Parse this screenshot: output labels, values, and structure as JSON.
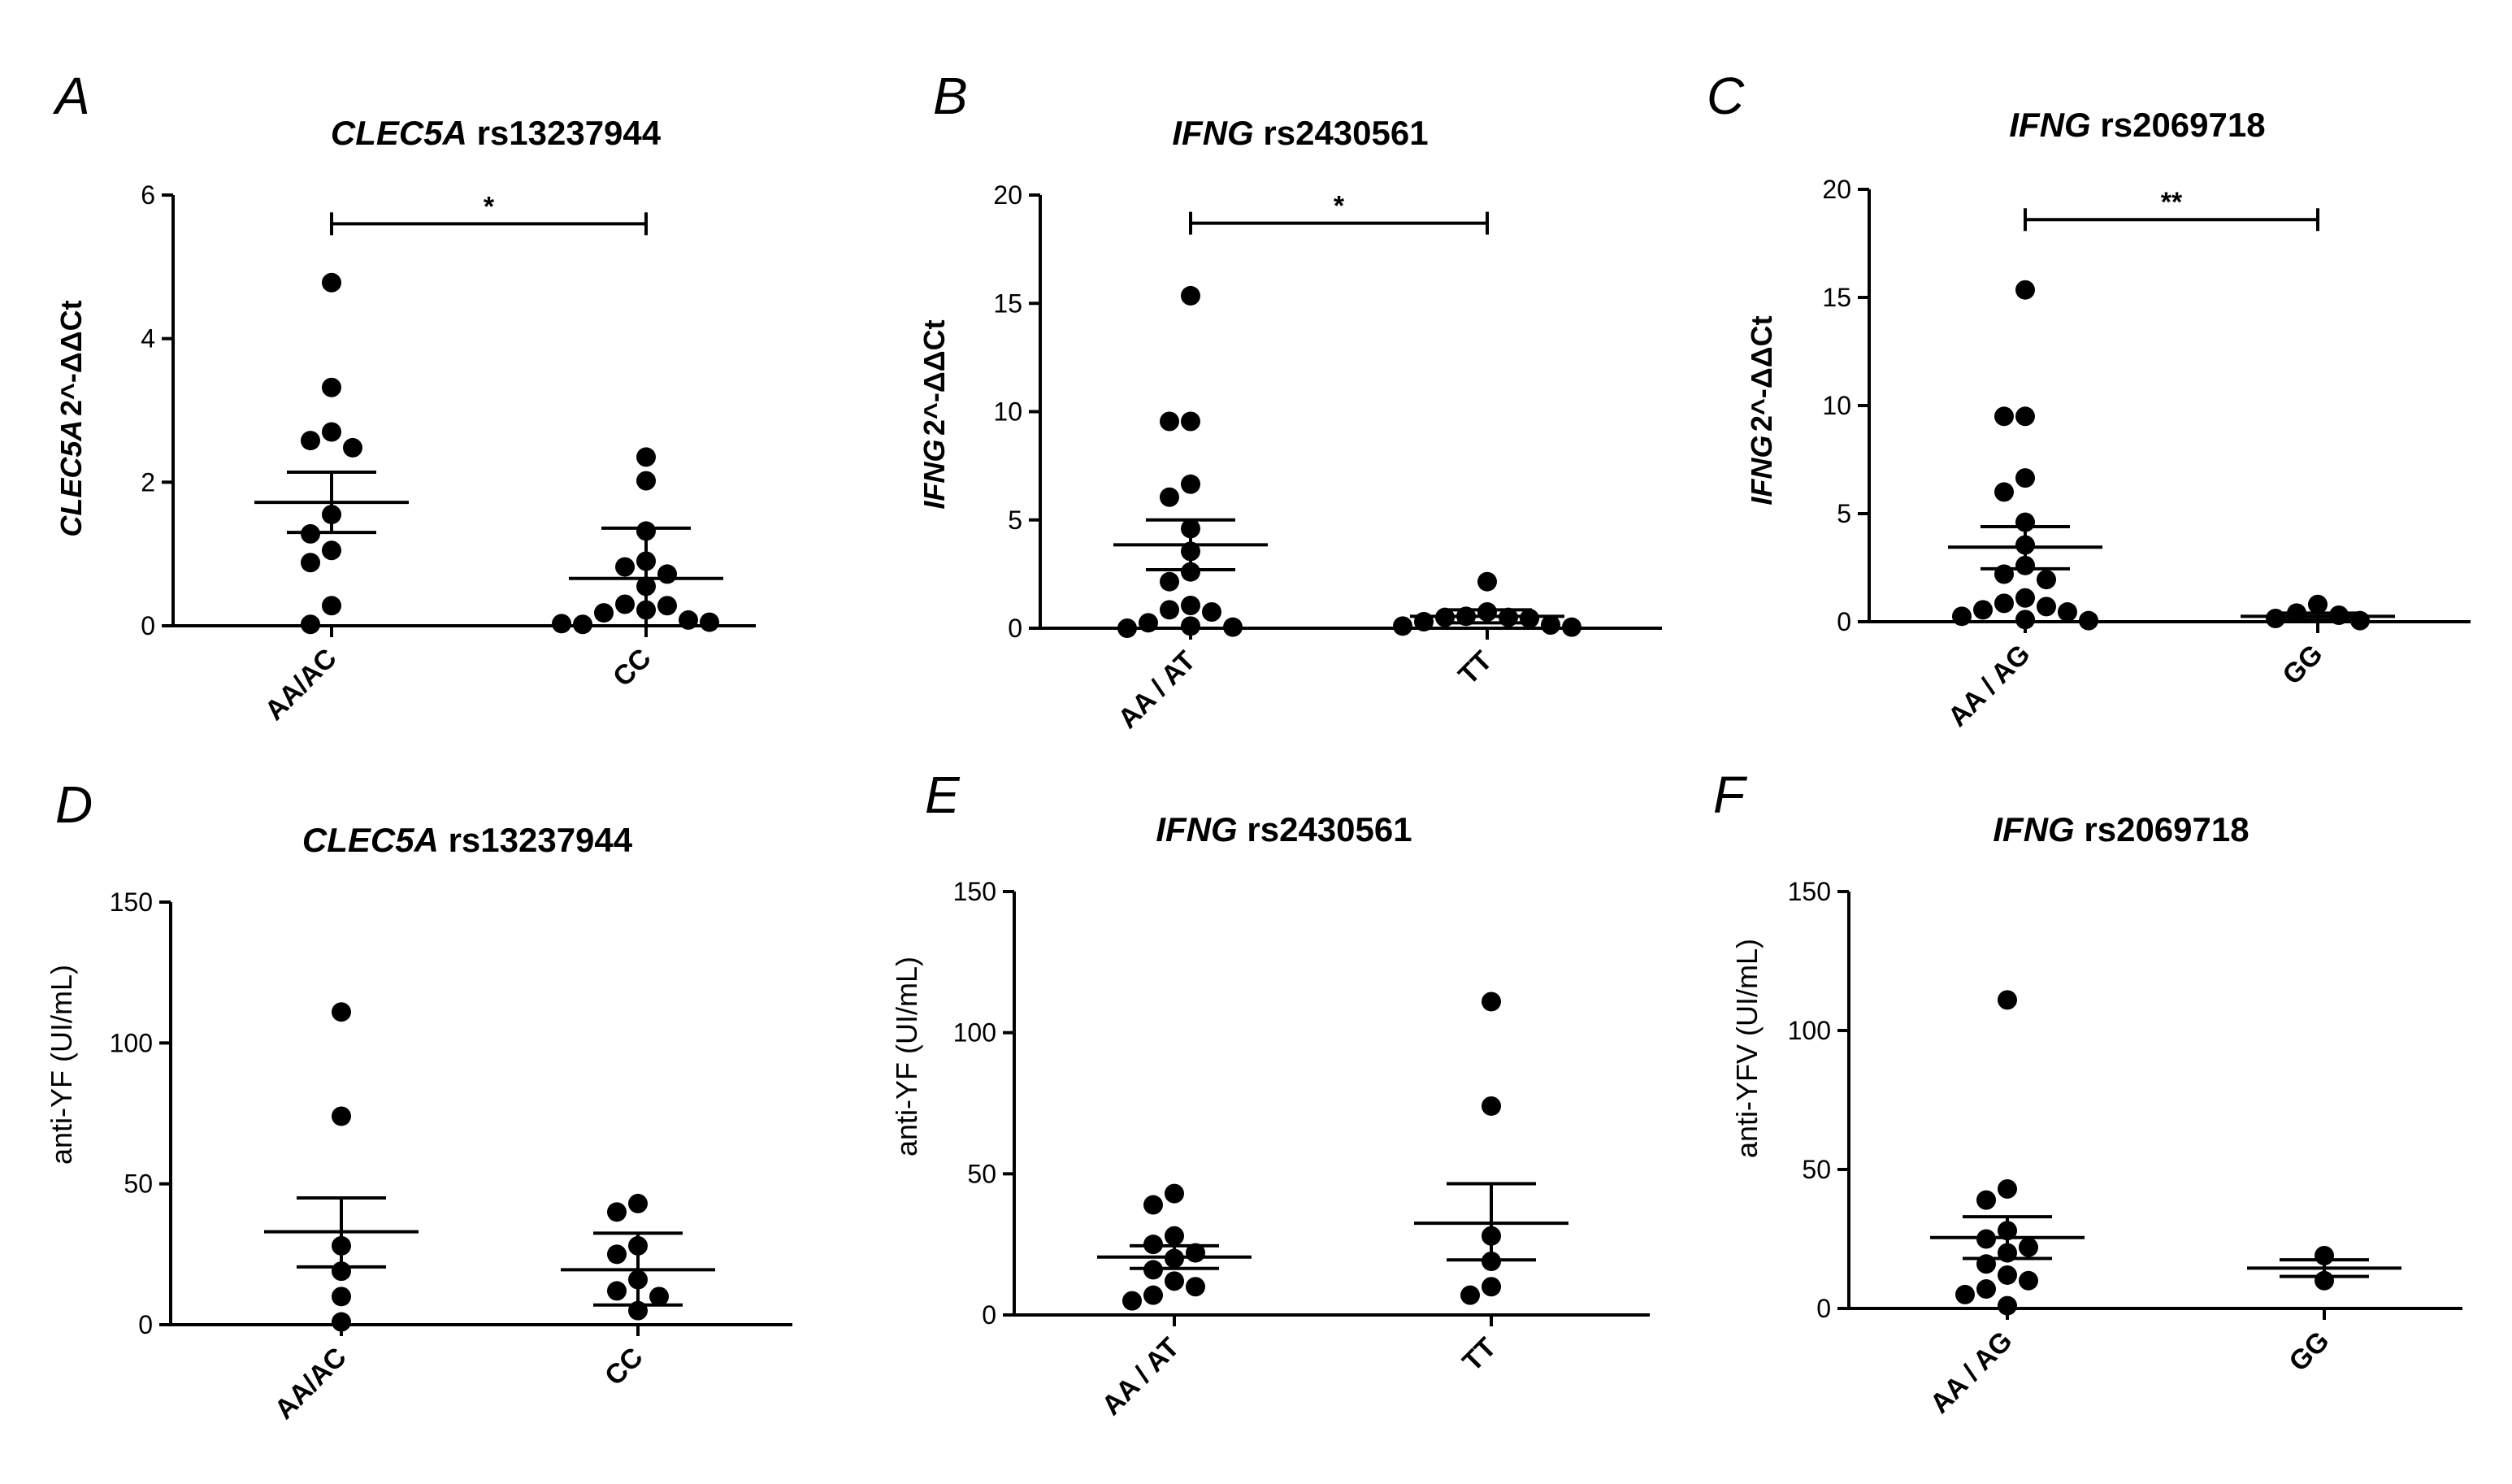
{
  "figure": {
    "panels": [
      {
        "letter": "A",
        "title": {
          "italic": "CLEC5A",
          "plain": "rs13237944"
        },
        "ylabel": {
          "italic": "CLEC5A",
          "plain": "2^-ΔΔCt"
        },
        "ylim": [
          0,
          6
        ],
        "yticks": [
          "0",
          "2",
          "4",
          "6"
        ],
        "categories": [
          "AA/AC",
          "CC"
        ],
        "groups": [
          {
            "name": "AA/AC",
            "mean": 1.72,
            "sem_low": 1.3,
            "sem_high": 2.14,
            "points": [
              4.78,
              3.32,
              2.7,
              2.58,
              2.48,
              1.55,
              1.28,
              1.05,
              0.88,
              0.28,
              0.02
            ]
          },
          {
            "name": "CC",
            "mean": 0.66,
            "sem_low": 0.0,
            "sem_high": 1.36,
            "points": [
              2.35,
              2.02,
              1.32,
              0.9,
              0.82,
              0.72,
              0.55,
              0.22,
              0.3,
              0.28,
              0.18,
              0.08,
              0.02,
              0.05,
              0.03
            ]
          }
        ],
        "significance": {
          "label": "*",
          "y": 5.6
        }
      },
      {
        "letter": "B",
        "title": {
          "italic": "IFNG",
          "plain": "rs2430561"
        },
        "ylabel": {
          "italic": "IFNG",
          "plain": "2^-ΔΔCt"
        },
        "ylim": [
          0,
          20
        ],
        "yticks": [
          "0",
          "5",
          "10",
          "15",
          "20"
        ],
        "categories": [
          "AA / AT",
          "TT"
        ],
        "groups": [
          {
            "name": "AA / AT",
            "mean": 3.85,
            "sem_low": 2.7,
            "sem_high": 5.0,
            "points": [
              15.35,
              9.55,
              9.55,
              6.65,
              6.05,
              4.6,
              3.55,
              2.6,
              2.15,
              1.05,
              0.85,
              0.75,
              0.25,
              0.1,
              0.05,
              0.0
            ]
          },
          {
            "name": "TT",
            "mean": 0.55,
            "sem_low": 0.25,
            "sem_high": 0.85,
            "points": [
              2.15,
              0.75,
              0.55,
              0.5,
              0.5,
              0.45,
              0.3,
              0.15,
              0.1,
              0.05
            ]
          }
        ],
        "significance": {
          "label": "*",
          "y": 18.7
        }
      },
      {
        "letter": "C",
        "title": {
          "italic": "IFNG",
          "plain": "rs2069718"
        },
        "ylabel": {
          "italic": "IFNG",
          "plain": "2^-ΔΔCt"
        },
        "ylim": [
          0,
          20
        ],
        "yticks": [
          "0",
          "5",
          "10",
          "15",
          "20"
        ],
        "categories": [
          "AA / AG",
          "GG"
        ],
        "groups": [
          {
            "name": "AA / AG",
            "mean": 3.45,
            "sem_low": 2.45,
            "sem_high": 4.4,
            "points": [
              15.35,
              9.5,
              9.5,
              6.65,
              6.0,
              4.6,
              3.55,
              2.6,
              2.2,
              1.95,
              1.1,
              0.85,
              0.7,
              0.55,
              0.45,
              0.25,
              0.1,
              0.05
            ]
          },
          {
            "name": "GG",
            "mean": 0.25,
            "sem_low": 0.1,
            "sem_high": 0.4,
            "points": [
              0.8,
              0.4,
              0.3,
              0.15,
              0.05
            ]
          }
        ],
        "significance": {
          "label": "**",
          "y": 18.6
        }
      },
      {
        "letter": "D",
        "title": {
          "italic": "CLEC5A",
          "plain": "rs13237944"
        },
        "ylabel": {
          "italic": "",
          "plain": "anti-YF (UI/mL)"
        },
        "ylim": [
          0,
          150
        ],
        "yticks": [
          "0",
          "50",
          "100",
          "150"
        ],
        "categories": [
          "AA/AC",
          "CC"
        ],
        "groups": [
          {
            "name": "AA/AC",
            "mean": 33,
            "sem_low": 20.5,
            "sem_high": 45,
            "points": [
              111,
              74,
              28,
              19,
              10,
              1
            ]
          },
          {
            "name": "CC",
            "mean": 19.5,
            "sem_low": 7,
            "sem_high": 32.5,
            "points": [
              43,
              40,
              28,
              25,
              16,
              12,
              10,
              5
            ]
          }
        ],
        "significance": null
      },
      {
        "letter": "E",
        "title": {
          "italic": "IFNG",
          "plain": "rs2430561"
        },
        "ylabel": {
          "italic": "",
          "plain": "anti-YF (UI/mL)"
        },
        "ylim": [
          0,
          150
        ],
        "yticks": [
          "0",
          "50",
          "100",
          "150"
        ],
        "categories": [
          "AA / AT",
          "TT"
        ],
        "groups": [
          {
            "name": "AA / AT",
            "mean": 20.5,
            "sem_low": 16.5,
            "sem_high": 24.5,
            "points": [
              43,
              39,
              28,
              25,
              22,
              20,
              16,
              12,
              10,
              7,
              5
            ]
          },
          {
            "name": "TT",
            "mean": 32.5,
            "sem_low": 19.5,
            "sem_high": 46.5,
            "points": [
              111,
              74,
              28,
              19,
              10,
              7
            ]
          }
        ],
        "significance": null
      },
      {
        "letter": "F",
        "title": {
          "italic": "IFNG",
          "plain": "rs2069718"
        },
        "ylabel": {
          "italic": "",
          "plain": "anti-YFV (UI/mL)"
        },
        "ylim": [
          0,
          150
        ],
        "yticks": [
          "0",
          "50",
          "100",
          "150"
        ],
        "categories": [
          "AA / AG",
          "GG"
        ],
        "groups": [
          {
            "name": "AA / AG",
            "mean": 25.5,
            "sem_low": 18,
            "sem_high": 33,
            "points": [
              111,
              43,
              39,
              28,
              25,
              22,
              20,
              16,
              12,
              10,
              7,
              5,
              1
            ]
          },
          {
            "name": "GG",
            "mean": 14.5,
            "sem_low": 11.5,
            "sem_high": 17.5,
            "points": [
              19,
              10
            ]
          }
        ],
        "significance": null
      }
    ]
  },
  "chart_data": [
    {
      "type": "scatter",
      "title": "CLEC5A rs13237944",
      "ylabel": "CLEC5A 2^-ΔΔCt",
      "ylim": [
        0,
        6
      ],
      "categories": [
        "AA/AC",
        "CC"
      ],
      "series": [
        {
          "name": "AA/AC",
          "values": [
            4.78,
            3.32,
            2.7,
            2.58,
            2.48,
            1.55,
            1.28,
            1.05,
            0.88,
            0.28,
            0.02
          ],
          "mean": 1.72
        },
        {
          "name": "CC",
          "values": [
            2.35,
            2.02,
            1.32,
            0.9,
            0.82,
            0.72,
            0.55,
            0.22,
            0.3,
            0.28,
            0.18,
            0.08,
            0.02,
            0.05,
            0.03
          ],
          "mean": 0.66
        }
      ],
      "annotation": "*"
    },
    {
      "type": "scatter",
      "title": "IFNG rs2430561",
      "ylabel": "IFNG 2^-ΔΔCt",
      "ylim": [
        0,
        20
      ],
      "categories": [
        "AA / AT",
        "TT"
      ],
      "series": [
        {
          "name": "AA / AT",
          "values": [
            15.35,
            9.55,
            9.55,
            6.65,
            6.05,
            4.6,
            3.55,
            2.6,
            2.15,
            1.05,
            0.85,
            0.75,
            0.25,
            0.1,
            0.05,
            0.0
          ],
          "mean": 3.85
        },
        {
          "name": "TT",
          "values": [
            2.15,
            0.75,
            0.55,
            0.5,
            0.5,
            0.45,
            0.3,
            0.15,
            0.1,
            0.05
          ],
          "mean": 0.55
        }
      ],
      "annotation": "*"
    },
    {
      "type": "scatter",
      "title": "IFNG rs2069718",
      "ylabel": "IFNG 2^-ΔΔCt",
      "ylim": [
        0,
        20
      ],
      "categories": [
        "AA / AG",
        "GG"
      ],
      "series": [
        {
          "name": "AA / AG",
          "values": [
            15.35,
            9.5,
            9.5,
            6.65,
            6.0,
            4.6,
            3.55,
            2.6,
            2.2,
            1.95,
            1.1,
            0.85,
            0.7,
            0.55,
            0.45,
            0.25,
            0.1,
            0.05
          ],
          "mean": 3.45
        },
        {
          "name": "GG",
          "values": [
            0.8,
            0.4,
            0.3,
            0.15,
            0.05
          ],
          "mean": 0.25
        }
      ],
      "annotation": "**"
    },
    {
      "type": "scatter",
      "title": "CLEC5A rs13237944",
      "ylabel": "anti-YF (UI/mL)",
      "ylim": [
        0,
        150
      ],
      "categories": [
        "AA/AC",
        "CC"
      ],
      "series": [
        {
          "name": "AA/AC",
          "values": [
            111,
            74,
            28,
            19,
            10,
            1
          ],
          "mean": 33
        },
        {
          "name": "CC",
          "values": [
            43,
            40,
            28,
            25,
            16,
            12,
            10,
            5
          ],
          "mean": 19.5
        }
      ]
    },
    {
      "type": "scatter",
      "title": "IFNG rs2430561",
      "ylabel": "anti-YF (UI/mL)",
      "ylim": [
        0,
        150
      ],
      "categories": [
        "AA / AT",
        "TT"
      ],
      "series": [
        {
          "name": "AA / AT",
          "values": [
            43,
            39,
            28,
            25,
            22,
            20,
            16,
            12,
            10,
            7,
            5
          ],
          "mean": 20.5
        },
        {
          "name": "TT",
          "values": [
            111,
            74,
            28,
            19,
            10,
            7
          ],
          "mean": 32.5
        }
      ]
    },
    {
      "type": "scatter",
      "title": "IFNG rs2069718",
      "ylabel": "anti-YFV (UI/mL)",
      "ylim": [
        0,
        150
      ],
      "categories": [
        "AA / AG",
        "GG"
      ],
      "series": [
        {
          "name": "AA / AG",
          "values": [
            111,
            43,
            39,
            28,
            25,
            22,
            20,
            16,
            12,
            10,
            7,
            5,
            1
          ],
          "mean": 25.5
        },
        {
          "name": "GG",
          "values": [
            19,
            10
          ],
          "mean": 14.5
        }
      ]
    }
  ]
}
